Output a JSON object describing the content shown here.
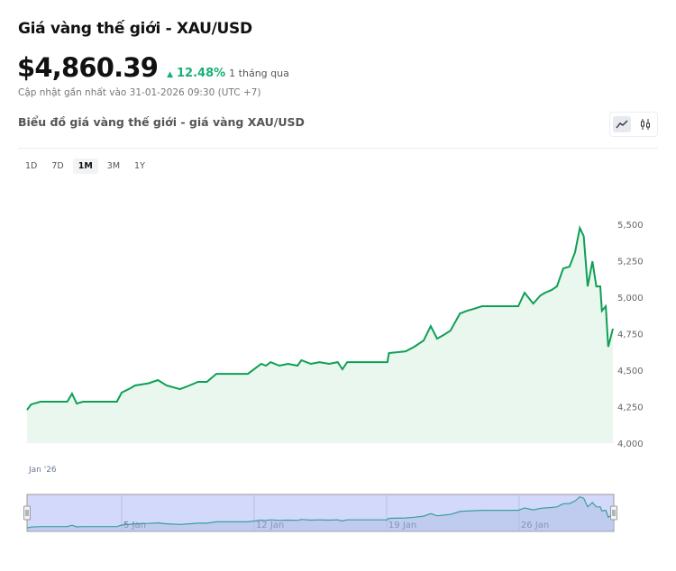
{
  "header": {
    "title": "Giá vàng thế giới - XAU/USD",
    "price": "$4,860.39",
    "change": "12.48%",
    "change_direction": "up",
    "period": "1 tháng qua",
    "updated": "Cập nhật gần nhất vào 31-01-2026 09:30 (UTC +7)",
    "subtitle": "Biểu đồ giá vàng thế giới - giá vàng XAU/USD"
  },
  "chart_type_toggle": [
    {
      "icon": "line-chart-icon",
      "active": true
    },
    {
      "icon": "candlestick-icon",
      "active": false
    }
  ],
  "ranges": [
    {
      "label": "1D",
      "active": false
    },
    {
      "label": "7D",
      "active": false
    },
    {
      "label": "1M",
      "active": true
    },
    {
      "label": "3M",
      "active": false
    },
    {
      "label": "1Y",
      "active": false
    }
  ],
  "colors": {
    "line": "#0e9f55",
    "area": "#e9f7ef",
    "navigator_bg": "#d3d9fb",
    "navigator_line": "#3a9f9a",
    "up": "#16b173"
  },
  "chart_data": {
    "type": "area",
    "xlim": [
      "2025-12-31T00:00",
      "2026-01-30T23:00"
    ],
    "ylim": [
      4000,
      5600
    ],
    "y_ticks": [
      {
        "value": 4000,
        "label": "4,000"
      },
      {
        "value": 4250,
        "label": "4,250"
      },
      {
        "value": 4500,
        "label": "4,500"
      },
      {
        "value": 4750,
        "label": "4,750"
      },
      {
        "value": 5000,
        "label": "5,000"
      },
      {
        "value": 5250,
        "label": "5,250"
      },
      {
        "value": 5500,
        "label": "5,500"
      }
    ],
    "x_label_main": "Jan '26",
    "navigator_ticks": [
      {
        "date": "2026-01-05T00:00",
        "label": "5 Jan"
      },
      {
        "date": "2026-01-12T00:00",
        "label": "12 Jan"
      },
      {
        "date": "2026-01-19T00:00",
        "label": "19 Jan"
      },
      {
        "date": "2026-01-26T00:00",
        "label": "26 Jan"
      }
    ],
    "grid": false,
    "points": [
      [
        "2025-12-31T00:00",
        4228
      ],
      [
        "2025-12-31T05:00",
        4265
      ],
      [
        "2025-12-31T17:00",
        4284
      ],
      [
        "2026-01-02T03:00",
        4284
      ],
      [
        "2026-01-02T09:00",
        4339
      ],
      [
        "2026-01-02T15:00",
        4271
      ],
      [
        "2026-01-02T23:00",
        4284
      ],
      [
        "2026-01-04T18:00",
        4284
      ],
      [
        "2026-01-05T00:00",
        4346
      ],
      [
        "2026-01-05T11:00",
        4376
      ],
      [
        "2026-01-05T17:00",
        4395
      ],
      [
        "2026-01-06T10:00",
        4410
      ],
      [
        "2026-01-06T22:00",
        4432
      ],
      [
        "2026-01-07T09:00",
        4395
      ],
      [
        "2026-01-08T02:00",
        4370
      ],
      [
        "2026-01-08T14:00",
        4395
      ],
      [
        "2026-01-09T01:00",
        4420
      ],
      [
        "2026-01-09T12:00",
        4420
      ],
      [
        "2026-01-10T00:00",
        4475
      ],
      [
        "2026-01-11T16:00",
        4475
      ],
      [
        "2026-01-12T09:00",
        4543
      ],
      [
        "2026-01-12T15:00",
        4531
      ],
      [
        "2026-01-12T21:00",
        4555
      ],
      [
        "2026-01-13T08:00",
        4531
      ],
      [
        "2026-01-13T19:00",
        4543
      ],
      [
        "2026-01-14T07:00",
        4531
      ],
      [
        "2026-01-14T12:00",
        4568
      ],
      [
        "2026-01-15T00:00",
        4543
      ],
      [
        "2026-01-15T11:00",
        4555
      ],
      [
        "2026-01-15T23:00",
        4543
      ],
      [
        "2026-01-16T10:00",
        4555
      ],
      [
        "2026-01-16T16:00",
        4506
      ],
      [
        "2026-01-16T22:00",
        4555
      ],
      [
        "2026-01-19T01:00",
        4555
      ],
      [
        "2026-01-19T03:00",
        4617
      ],
      [
        "2026-01-20T00:00",
        4629
      ],
      [
        "2026-01-20T11:00",
        4660
      ],
      [
        "2026-01-20T23:00",
        4703
      ],
      [
        "2026-01-21T08:00",
        4802
      ],
      [
        "2026-01-21T16:00",
        4716
      ],
      [
        "2026-01-22T00:00",
        4740
      ],
      [
        "2026-01-22T09:00",
        4771
      ],
      [
        "2026-01-22T21:00",
        4888
      ],
      [
        "2026-01-23T06:00",
        4907
      ],
      [
        "2026-01-23T14:00",
        4919
      ],
      [
        "2026-01-24T01:00",
        4938
      ],
      [
        "2026-01-25T23:00",
        4938
      ],
      [
        "2026-01-26T07:00",
        5031
      ],
      [
        "2026-01-26T18:00",
        4956
      ],
      [
        "2026-01-27T03:00",
        5012
      ],
      [
        "2026-01-27T09:00",
        5031
      ],
      [
        "2026-01-27T17:00",
        5049
      ],
      [
        "2026-01-28T00:00",
        5074
      ],
      [
        "2026-01-28T08:00",
        5197
      ],
      [
        "2026-01-28T16:00",
        5209
      ],
      [
        "2026-01-28T23:00",
        5308
      ],
      [
        "2026-01-29T05:00",
        5475
      ],
      [
        "2026-01-29T10:00",
        5419
      ],
      [
        "2026-01-29T15:00",
        5074
      ],
      [
        "2026-01-29T21:00",
        5246
      ],
      [
        "2026-01-30T02:00",
        5074
      ],
      [
        "2026-01-30T07:00",
        5074
      ],
      [
        "2026-01-30T09:00",
        4907
      ],
      [
        "2026-01-30T14:00",
        4938
      ],
      [
        "2026-01-30T17:00",
        4660
      ],
      [
        "2026-01-30T23:00",
        4784
      ]
    ]
  }
}
